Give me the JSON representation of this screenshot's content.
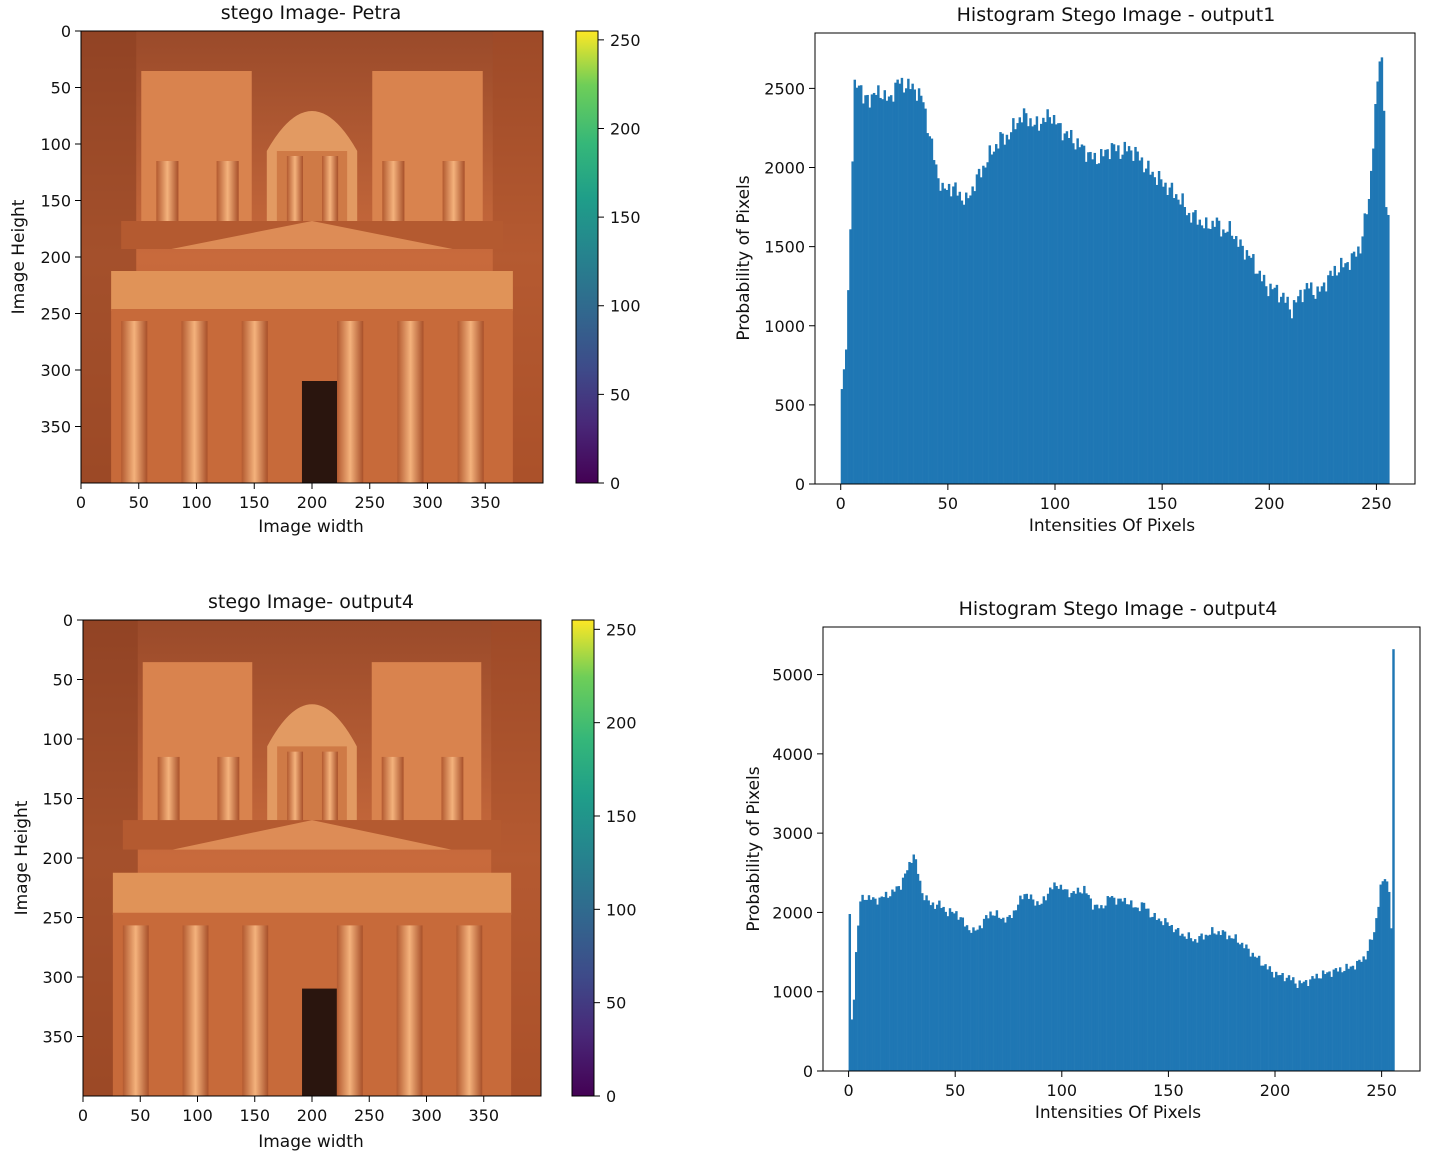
{
  "panels": {
    "img1": {
      "title": "stego Image- Petra",
      "xlabel": "Image width",
      "ylabel": "Image Height",
      "xticks": [
        "0",
        "50",
        "100",
        "150",
        "200",
        "250",
        "300",
        "350"
      ],
      "yticks": [
        "0",
        "50",
        "100",
        "150",
        "200",
        "250",
        "300",
        "350"
      ],
      "colorbar_ticks": [
        "0",
        "50",
        "100",
        "150",
        "200",
        "250"
      ]
    },
    "img2": {
      "title": "stego Image- output4",
      "xlabel": "Image width",
      "ylabel": "Image Height",
      "xticks": [
        "0",
        "50",
        "100",
        "150",
        "200",
        "250",
        "300",
        "350"
      ],
      "yticks": [
        "0",
        "50",
        "100",
        "150",
        "200",
        "250",
        "300",
        "350"
      ],
      "colorbar_ticks": [
        "0",
        "50",
        "100",
        "150",
        "200",
        "250"
      ]
    }
  },
  "chart_data": [
    {
      "type": "bar",
      "title": "Histogram Stego Image - output1",
      "xlabel": "Intensities Of Pixels",
      "ylabel": "Probability of Pixels",
      "xlim": [
        -12,
        268
      ],
      "ylim": [
        0,
        2850
      ],
      "xticks": [
        0,
        50,
        100,
        150,
        200,
        250
      ],
      "yticks": [
        0,
        500,
        1000,
        1500,
        2000,
        2500
      ],
      "color": "#1f77b4",
      "x_range": [
        0,
        255
      ],
      "keypoints": [
        [
          0,
          600
        ],
        [
          2,
          850
        ],
        [
          4,
          1600
        ],
        [
          6,
          2500
        ],
        [
          8,
          2560
        ],
        [
          10,
          2420
        ],
        [
          14,
          2450
        ],
        [
          18,
          2480
        ],
        [
          22,
          2420
        ],
        [
          26,
          2540
        ],
        [
          30,
          2520
        ],
        [
          34,
          2500
        ],
        [
          38,
          2420
        ],
        [
          41,
          2200
        ],
        [
          44,
          2000
        ],
        [
          47,
          1850
        ],
        [
          50,
          1880
        ],
        [
          54,
          1850
        ],
        [
          58,
          1780
        ],
        [
          62,
          1900
        ],
        [
          66,
          2000
        ],
        [
          70,
          2100
        ],
        [
          74,
          2180
        ],
        [
          78,
          2200
        ],
        [
          82,
          2300
        ],
        [
          86,
          2330
        ],
        [
          90,
          2260
        ],
        [
          94,
          2300
        ],
        [
          98,
          2330
        ],
        [
          102,
          2240
        ],
        [
          106,
          2200
        ],
        [
          110,
          2150
        ],
        [
          114,
          2100
        ],
        [
          118,
          2050
        ],
        [
          122,
          2080
        ],
        [
          126,
          2130
        ],
        [
          130,
          2100
        ],
        [
          134,
          2120
        ],
        [
          138,
          2080
        ],
        [
          142,
          2000
        ],
        [
          146,
          1950
        ],
        [
          150,
          1900
        ],
        [
          154,
          1850
        ],
        [
          158,
          1800
        ],
        [
          162,
          1700
        ],
        [
          166,
          1680
        ],
        [
          170,
          1620
        ],
        [
          174,
          1660
        ],
        [
          178,
          1600
        ],
        [
          182,
          1600
        ],
        [
          186,
          1500
        ],
        [
          190,
          1450
        ],
        [
          194,
          1350
        ],
        [
          198,
          1250
        ],
        [
          202,
          1230
        ],
        [
          206,
          1180
        ],
        [
          210,
          1100
        ],
        [
          214,
          1200
        ],
        [
          218,
          1250
        ],
        [
          222,
          1200
        ],
        [
          226,
          1280
        ],
        [
          230,
          1350
        ],
        [
          234,
          1380
        ],
        [
          238,
          1420
        ],
        [
          242,
          1500
        ],
        [
          246,
          1800
        ],
        [
          249,
          2350
        ],
        [
          251,
          2700
        ],
        [
          252,
          2680
        ],
        [
          253,
          2400
        ],
        [
          254,
          1750
        ],
        [
          255,
          1700
        ]
      ]
    },
    {
      "type": "bar",
      "title": "Histogram Stego Image - output4",
      "xlabel": "Intensities Of Pixels",
      "ylabel": "Probability of Pixels",
      "xlim": [
        -12,
        268
      ],
      "ylim": [
        0,
        5600
      ],
      "xticks": [
        0,
        50,
        100,
        150,
        200,
        250
      ],
      "yticks": [
        0,
        1000,
        2000,
        3000,
        4000,
        5000
      ],
      "color": "#1f77b4",
      "x_range": [
        0,
        255
      ],
      "keypoints": [
        [
          0,
          1980
        ],
        [
          1,
          650
        ],
        [
          2,
          900
        ],
        [
          3,
          1500
        ],
        [
          5,
          2150
        ],
        [
          8,
          2200
        ],
        [
          12,
          2150
        ],
        [
          16,
          2200
        ],
        [
          20,
          2250
        ],
        [
          24,
          2350
        ],
        [
          28,
          2600
        ],
        [
          30,
          2750
        ],
        [
          32,
          2500
        ],
        [
          34,
          2250
        ],
        [
          38,
          2100
        ],
        [
          42,
          2100
        ],
        [
          46,
          2000
        ],
        [
          50,
          2000
        ],
        [
          54,
          1850
        ],
        [
          58,
          1750
        ],
        [
          62,
          1850
        ],
        [
          66,
          2000
        ],
        [
          70,
          1950
        ],
        [
          74,
          1900
        ],
        [
          78,
          2050
        ],
        [
          82,
          2250
        ],
        [
          86,
          2150
        ],
        [
          90,
          2100
        ],
        [
          94,
          2300
        ],
        [
          98,
          2350
        ],
        [
          102,
          2250
        ],
        [
          106,
          2250
        ],
        [
          110,
          2300
        ],
        [
          114,
          2100
        ],
        [
          118,
          2050
        ],
        [
          122,
          2200
        ],
        [
          126,
          2150
        ],
        [
          130,
          2150
        ],
        [
          134,
          2050
        ],
        [
          138,
          2100
        ],
        [
          142,
          1950
        ],
        [
          146,
          1900
        ],
        [
          150,
          1850
        ],
        [
          154,
          1750
        ],
        [
          158,
          1700
        ],
        [
          162,
          1650
        ],
        [
          166,
          1700
        ],
        [
          170,
          1750
        ],
        [
          174,
          1750
        ],
        [
          178,
          1700
        ],
        [
          182,
          1650
        ],
        [
          186,
          1550
        ],
        [
          190,
          1450
        ],
        [
          194,
          1350
        ],
        [
          198,
          1250
        ],
        [
          202,
          1200
        ],
        [
          206,
          1180
        ],
        [
          210,
          1100
        ],
        [
          214,
          1120
        ],
        [
          218,
          1180
        ],
        [
          222,
          1220
        ],
        [
          226,
          1250
        ],
        [
          230,
          1280
        ],
        [
          234,
          1300
        ],
        [
          238,
          1350
        ],
        [
          242,
          1450
        ],
        [
          246,
          1750
        ],
        [
          249,
          2300
        ],
        [
          251,
          2450
        ],
        [
          253,
          2300
        ],
        [
          254,
          1800
        ],
        [
          255,
          5320
        ]
      ]
    }
  ]
}
